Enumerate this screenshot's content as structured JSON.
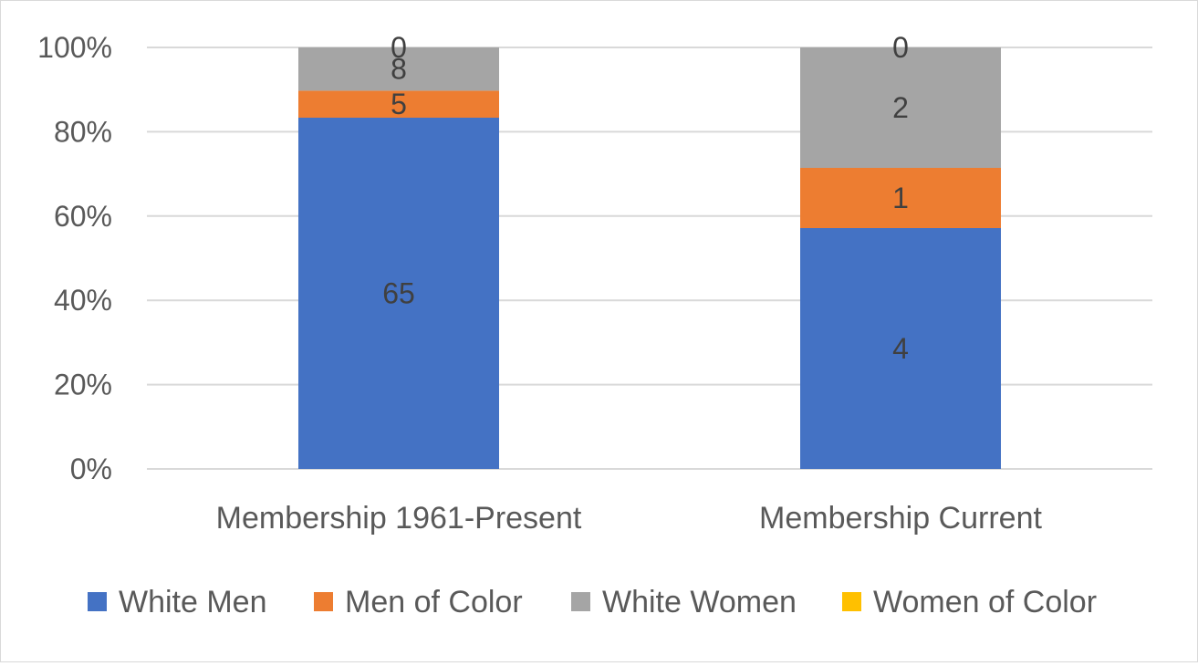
{
  "chart_data": {
    "type": "bar",
    "stacked": true,
    "normalized": true,
    "categories": [
      "Membership 1961-Present",
      "Membership Current"
    ],
    "series": [
      {
        "name": "White Men",
        "color": "#4472C4",
        "values": [
          65,
          4
        ]
      },
      {
        "name": "Men of Color",
        "color": "#ED7D31",
        "values": [
          5,
          1
        ]
      },
      {
        "name": "White Women",
        "color": "#A5A5A5",
        "values": [
          8,
          2
        ]
      },
      {
        "name": "Women of Color",
        "color": "#FFC000",
        "values": [
          0,
          0
        ]
      }
    ],
    "yticks": [
      "0%",
      "20%",
      "40%",
      "60%",
      "80%",
      "100%"
    ],
    "ylim": [
      0,
      100
    ],
    "grid": true,
    "legend_position": "bottom",
    "title": "",
    "xlabel": "",
    "ylabel": ""
  }
}
